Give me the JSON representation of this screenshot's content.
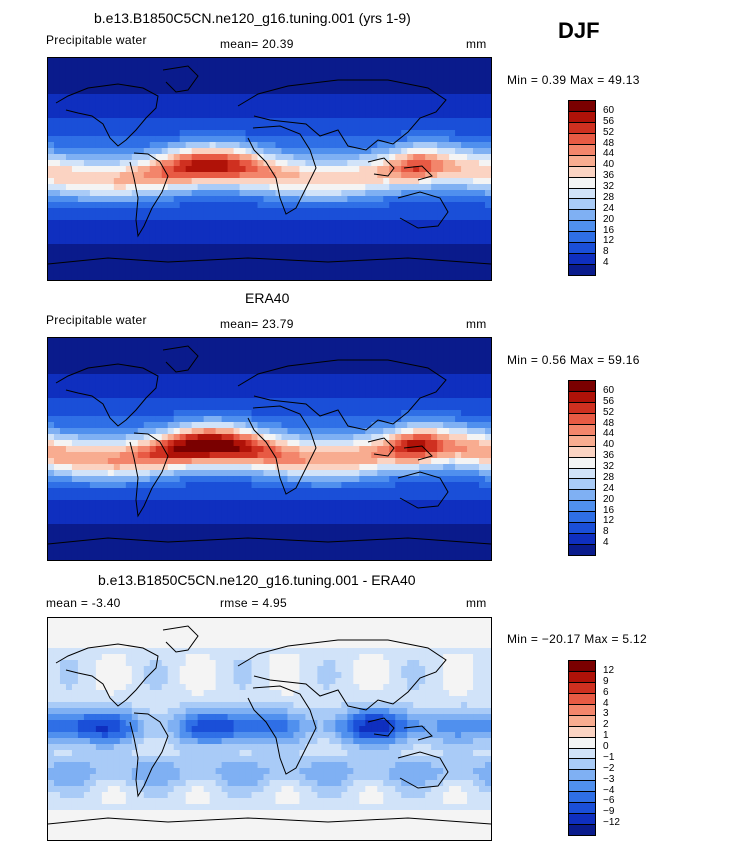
{
  "season": "DJF",
  "panels": [
    {
      "title": "b.e13.B1850C5CN.ne120_g16.tuning.001 (yrs 1-9)",
      "left_label": "Precipitable water",
      "mid_label": "mean=  20.39",
      "unit": "mm",
      "minmax": "Min =   0.39 Max =  49.13",
      "kind": "abs",
      "peak": 0.78,
      "colorbar": {
        "labels": [
          "4",
          "8",
          "12",
          "16",
          "20",
          "24",
          "28",
          "32",
          "36",
          "40",
          "44",
          "48",
          "52",
          "56",
          "60"
        ],
        "colors": [
          "#0a1b8c",
          "#0f2fbf",
          "#1a4fd8",
          "#2f6fe6",
          "#5090ee",
          "#7fb0f3",
          "#a9cbf7",
          "#d1e3f9",
          "#f4f4f4",
          "#fbd3c2",
          "#f8ac90",
          "#f3856b",
          "#e85a44",
          "#cf3020",
          "#b01208",
          "#7a0000"
        ]
      }
    },
    {
      "title": "ERA40",
      "left_label": "Precipitable water",
      "mid_label": "mean=  23.79",
      "unit": "mm",
      "minmax": "Min =   0.56 Max =  59.16",
      "kind": "abs",
      "peak": 0.92,
      "colorbar": {
        "labels": [
          "4",
          "8",
          "12",
          "16",
          "20",
          "24",
          "28",
          "32",
          "36",
          "40",
          "44",
          "48",
          "52",
          "56",
          "60"
        ],
        "colors": [
          "#0a1b8c",
          "#0f2fbf",
          "#1a4fd8",
          "#2f6fe6",
          "#5090ee",
          "#7fb0f3",
          "#a9cbf7",
          "#d1e3f9",
          "#f4f4f4",
          "#fbd3c2",
          "#f8ac90",
          "#f3856b",
          "#e85a44",
          "#cf3020",
          "#b01208",
          "#7a0000"
        ]
      }
    },
    {
      "title": "b.e13.B1850C5CN.ne120_g16.tuning.001 - ERA40",
      "left_label": "mean =   -3.40",
      "mid_label": "rmse =    4.95",
      "unit": "mm",
      "minmax": "Min = −20.17 Max =   5.12",
      "kind": "diff",
      "peak": 1.0,
      "colorbar": {
        "labels": [
          "−12",
          "−9",
          "−6",
          "−4",
          "−3",
          "−2",
          "−1",
          "0",
          "1",
          "2",
          "3",
          "4",
          "6",
          "9",
          "12"
        ],
        "colors": [
          "#0a1b8c",
          "#0f2fbf",
          "#1a4fd8",
          "#2f6fe6",
          "#5090ee",
          "#7fb0f3",
          "#a9cbf7",
          "#d1e3f9",
          "#f4f4f4",
          "#fbd3c2",
          "#f8ac90",
          "#f3856b",
          "#e85a44",
          "#cf3020",
          "#b01208",
          "#7a0000"
        ]
      }
    }
  ]
}
